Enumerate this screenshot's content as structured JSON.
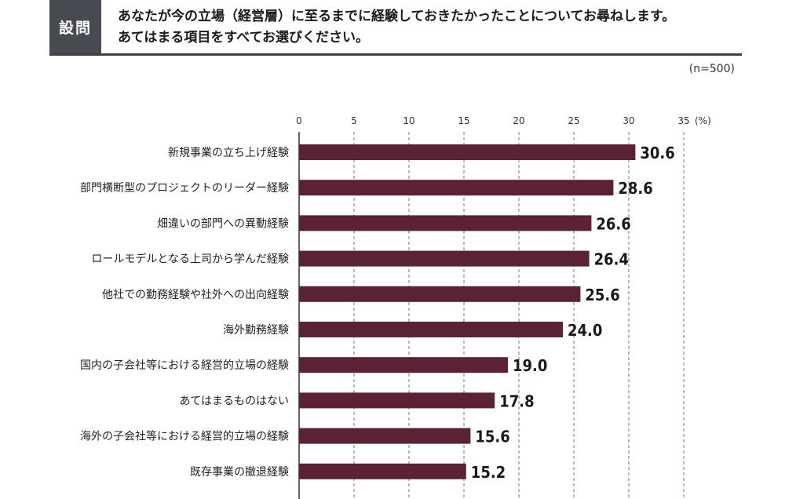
{
  "question": {
    "tag": "設問",
    "line1": "あなたが今の立場（経営層）に至るまでに経験しておきたかったことについてお尋ねします。",
    "line2": "あてはまる項目をすべてお選びください。"
  },
  "sample_note": "(n=500)",
  "colors": {
    "bar": "#5a2234",
    "header_tag": "#474a50"
  },
  "chart_data": {
    "type": "bar",
    "orientation": "horizontal",
    "unit": "(%)",
    "xlim": [
      0,
      35
    ],
    "ticks": [
      0,
      5,
      10,
      15,
      20,
      25,
      30,
      35
    ],
    "grid": "dashed vertical",
    "categories": [
      "新規事業の立ち上げ経験",
      "部門横断型のプロジェクトのリーダー経験",
      "畑違いの部門への異動経験",
      "ロールモデルとなる上司から学んだ経験",
      "他社での勤務経験や社外への出向経験",
      "海外勤務経験",
      "国内の子会社等における経営的立場の経験",
      "あてはまるものはない",
      "海外の子会社等における経営的立場の経験",
      "既存事業の撤退経験"
    ],
    "values": [
      30.6,
      28.6,
      26.6,
      26.4,
      25.6,
      24.0,
      19.0,
      17.8,
      15.6,
      15.2
    ],
    "value_labels": [
      "30.6",
      "28.6",
      "26.6",
      "26.4",
      "25.6",
      "24.0",
      "19.0",
      "17.8",
      "15.6",
      "15.2"
    ]
  }
}
